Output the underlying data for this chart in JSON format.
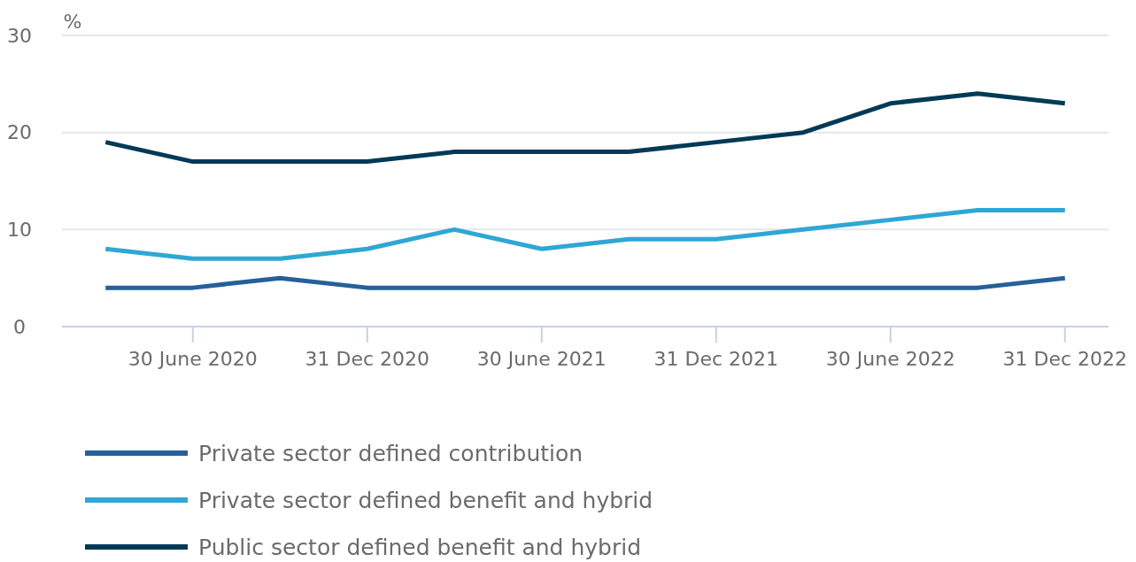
{
  "chart_data": {
    "type": "line",
    "ylabel": "%",
    "categories": [
      null,
      "30 June 2020",
      null,
      "31 Dec 2020",
      null,
      "30 June 2021",
      null,
      "31 Dec 2021",
      null,
      "30 June 2022",
      null,
      "31 Dec 2022"
    ],
    "series": [
      {
        "name": "Private sector defined contribution",
        "color": "#25609a",
        "values": [
          4,
          4,
          5,
          4,
          4,
          4,
          4,
          4,
          4,
          4,
          4,
          5
        ]
      },
      {
        "name": "Private sector defined benefit and hybrid",
        "color": "#2fa7d4",
        "values": [
          8,
          7,
          7,
          8,
          10,
          8,
          9,
          9,
          10,
          11,
          12,
          12
        ]
      },
      {
        "name": "Public sector defined benefit and hybrid",
        "color": "#003a57",
        "values": [
          19,
          17,
          17,
          17,
          18,
          18,
          18,
          19,
          20,
          23,
          24,
          23
        ]
      }
    ],
    "ylim": [
      0,
      30
    ],
    "yticks": [
      0,
      10,
      20,
      30
    ],
    "grid": "y",
    "legend": "bottom",
    "marker": "none",
    "line_style": "solid"
  }
}
